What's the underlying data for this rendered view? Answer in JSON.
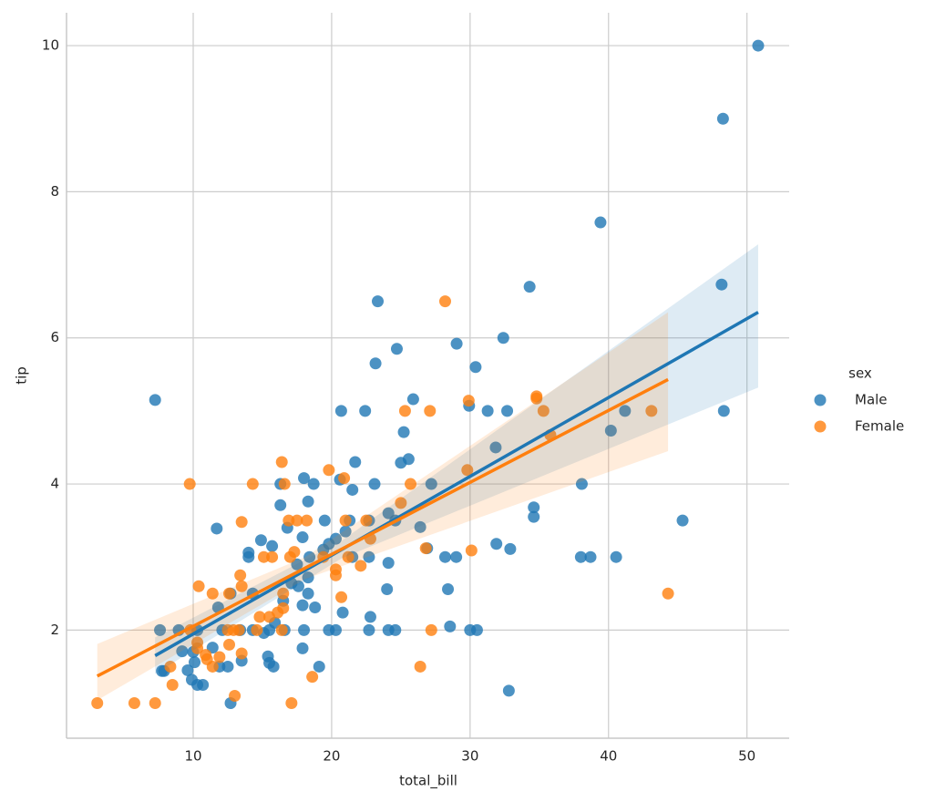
{
  "chart_data": {
    "type": "scatter",
    "x_label": "total_bill",
    "y_label": "tip",
    "legend_title": "sex",
    "legend_position": "right",
    "grid": true,
    "xlim": [
      0.85,
      53.05
    ],
    "ylim": [
      0.52,
      10.45
    ],
    "xticks": [
      10,
      20,
      30,
      40,
      50
    ],
    "yticks": [
      2,
      4,
      6,
      8,
      10
    ],
    "series": [
      {
        "name": "Male",
        "color": "#1f77b4",
        "x": [
          7.25,
          50.81,
          48.27,
          39.42,
          34.3,
          48.17,
          23.33,
          29.03,
          24.71,
          23.17,
          30.4,
          32.4,
          25.89,
          20.69,
          22.42,
          31.27,
          32.68,
          29.93,
          41.19,
          48.33,
          25.21,
          40.17,
          25.56,
          25.0,
          31.85,
          21.7,
          27.2,
          23.1,
          38.07,
          34.6,
          34.6,
          18.0,
          18.7,
          16.3,
          18.3,
          16.3,
          20.6,
          21.5,
          45.35,
          24.6,
          22.7,
          19.5,
          21.3,
          11.7,
          24.1,
          26.4,
          21.0,
          14.9,
          17.9,
          31.9,
          32.9,
          19.8,
          20.3,
          14.0,
          15.7,
          16.8,
          26.9,
          14.0,
          18.4,
          21.5,
          22.7,
          28.2,
          29.0,
          38.0,
          38.7,
          40.55,
          17.5,
          19.4,
          24.1,
          17.1,
          17.6,
          18.3,
          14.3,
          12.7,
          18.3,
          24.0,
          28.4,
          16.5,
          17.9,
          18.8,
          11.8,
          20.8,
          22.8,
          15.9,
          28.55,
          7.6,
          8.95,
          10.3,
          12.1,
          13.4,
          14.3,
          15.5,
          16.6,
          18.0,
          19.8,
          20.3,
          22.7,
          24.1,
          24.6,
          30.0,
          30.5,
          15.1,
          9.2,
          11.4,
          10.0,
          17.9,
          15.4,
          13.5,
          15.5,
          15.8,
          10.1,
          11.9,
          12.5,
          19.1,
          7.74,
          7.9,
          9.6,
          9.9,
          10.3,
          10.7,
          32.8,
          12.7
        ],
        "values": [
          5.15,
          10,
          9,
          7.58,
          6.7,
          6.73,
          6.5,
          5.92,
          5.85,
          5.65,
          5.6,
          6.0,
          5.16,
          5.0,
          5.0,
          5.0,
          5.0,
          5.07,
          5.0,
          5.0,
          4.71,
          4.73,
          4.34,
          4.29,
          4.5,
          4.3,
          4.0,
          4.0,
          4.0,
          3.68,
          3.55,
          4.08,
          4.0,
          4.0,
          3.76,
          3.71,
          4.06,
          3.92,
          3.5,
          3.5,
          3.5,
          3.5,
          3.5,
          3.39,
          3.6,
          3.41,
          3.35,
          3.23,
          3.27,
          3.18,
          3.11,
          3.18,
          3.25,
          3.06,
          3.15,
          3.4,
          3.12,
          3.0,
          3.0,
          3.0,
          3.0,
          3.0,
          3.0,
          3.0,
          3.0,
          3.0,
          2.9,
          3.1,
          2.92,
          2.64,
          2.6,
          2.5,
          2.5,
          2.5,
          2.72,
          2.56,
          2.56,
          2.4,
          2.34,
          2.31,
          2.31,
          2.24,
          2.18,
          2.1,
          2.05,
          2.0,
          2.0,
          2.0,
          2.0,
          2.0,
          2.0,
          2.0,
          2.0,
          2.0,
          2.0,
          2.0,
          2.0,
          2.0,
          2.0,
          2.0,
          2.0,
          1.96,
          1.71,
          1.76,
          1.7,
          1.75,
          1.64,
          1.58,
          1.55,
          1.5,
          1.56,
          1.5,
          1.5,
          1.5,
          1.44,
          1.44,
          1.45,
          1.32,
          1.25,
          1.25,
          1.17,
          1.0
        ],
        "fit": {
          "x": [
            7.25,
            20.7,
            50.81
          ],
          "y": [
            1.65,
            3.1,
            6.35
          ],
          "ci_lower": [
            1.4,
            2.98,
            5.32
          ],
          "ci_upper": [
            1.9,
            3.22,
            7.28
          ]
        }
      },
      {
        "name": "Female",
        "color": "#ff7f0e",
        "x": [
          3.07,
          5.75,
          7.25,
          17.1,
          13.0,
          18.6,
          8.5,
          8.35,
          26.4,
          11.4,
          10.9,
          10.3,
          11.0,
          11.9,
          12.6,
          13.5,
          10.3,
          9.8,
          12.5,
          12.9,
          13.3,
          14.6,
          16.4,
          27.2,
          15.5,
          14.8,
          16.1,
          16.5,
          20.7,
          16.5,
          11.4,
          12.6,
          13.5,
          10.4,
          44.3,
          13.4,
          20.3,
          20.3,
          22.1,
          17.0,
          15.7,
          15.1,
          19.4,
          21.2,
          30.1,
          26.8,
          22.8,
          17.3,
          18.2,
          13.5,
          16.9,
          17.5,
          22.5,
          21.0,
          25.0,
          9.75,
          14.3,
          25.7,
          16.6,
          20.9,
          19.8,
          29.8,
          16.4,
          25.3,
          27.1,
          29.9,
          34.8,
          34.8,
          35.3,
          43.1,
          28.2,
          35.8
        ],
        "values": [
          1.0,
          1.0,
          1.0,
          1.0,
          1.1,
          1.36,
          1.25,
          1.5,
          1.5,
          1.5,
          1.66,
          1.75,
          1.6,
          1.63,
          1.8,
          1.68,
          1.83,
          2.0,
          2.0,
          2.0,
          2.0,
          2.0,
          2.0,
          2.0,
          2.18,
          2.18,
          2.24,
          2.3,
          2.45,
          2.5,
          2.5,
          2.5,
          2.6,
          2.6,
          2.5,
          2.75,
          2.75,
          2.83,
          2.88,
          3.0,
          3.0,
          3.0,
          3.0,
          3.0,
          3.09,
          3.12,
          3.25,
          3.07,
          3.5,
          3.48,
          3.5,
          3.5,
          3.5,
          3.5,
          3.74,
          4.0,
          4.0,
          4.0,
          4.0,
          4.08,
          4.19,
          4.19,
          4.3,
          5.0,
          5.0,
          5.14,
          5.17,
          5.2,
          5.0,
          5.0,
          6.5,
          4.67
        ],
        "fit": {
          "x": [
            3.07,
            18.1,
            44.3
          ],
          "y": [
            1.37,
            2.85,
            5.43
          ],
          "ci_lower": [
            1.04,
            2.7,
            4.45
          ],
          "ci_upper": [
            1.81,
            3.0,
            6.35
          ]
        }
      }
    ]
  }
}
